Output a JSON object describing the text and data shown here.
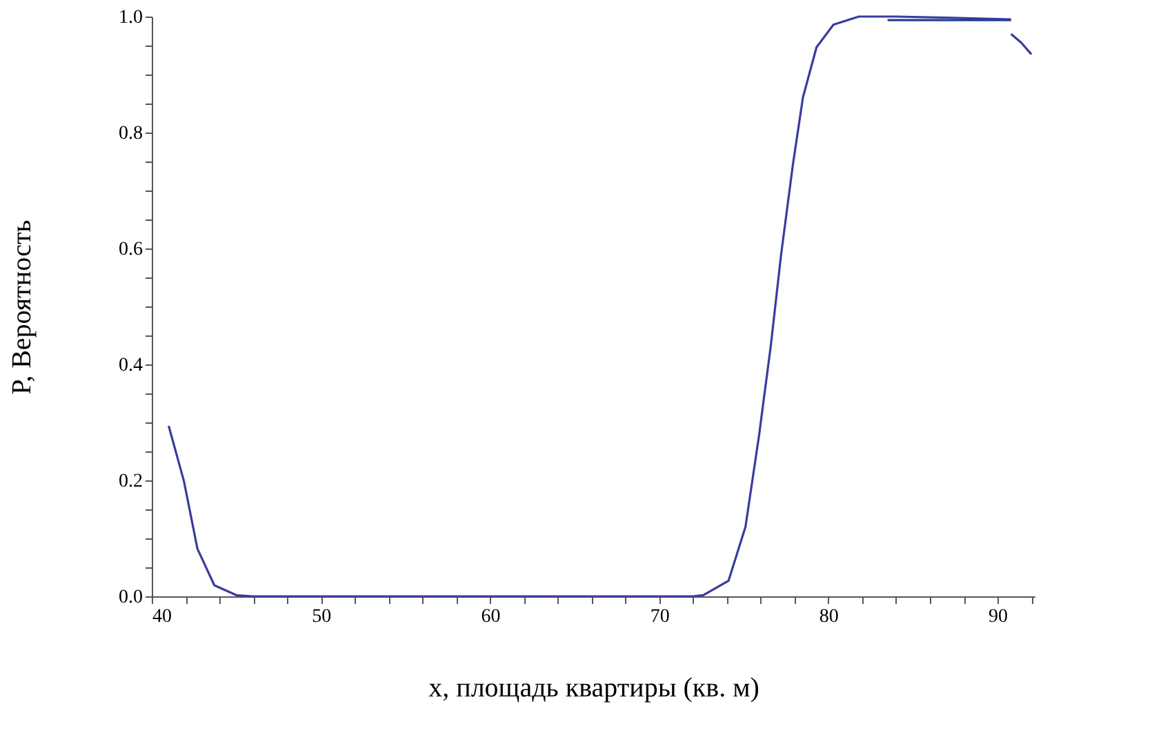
{
  "chart_data": {
    "type": "line",
    "xlabel": "x, площадь квартиры (кв. м)",
    "ylabel": "P, Вероятность",
    "xlim": [
      40,
      92.2
    ],
    "ylim": [
      0,
      1.0
    ],
    "xticks": [
      40,
      {
        "value": 42,
        "label": null
      },
      {
        "value": 44,
        "label": null
      },
      {
        "value": 46,
        "label": null
      },
      {
        "value": 48,
        "label": null
      },
      50,
      {
        "value": 52,
        "label": null
      },
      {
        "value": 54,
        "label": null
      },
      {
        "value": 56,
        "label": null
      },
      {
        "value": 58,
        "label": null
      },
      60,
      {
        "value": 62,
        "label": null
      },
      {
        "value": 64,
        "label": null
      },
      {
        "value": 66,
        "label": null
      },
      {
        "value": 68,
        "label": null
      },
      70,
      {
        "value": 72,
        "label": null
      },
      {
        "value": 74,
        "label": null
      },
      {
        "value": 76,
        "label": null
      },
      {
        "value": 78,
        "label": null
      },
      80,
      {
        "value": 82,
        "label": null
      },
      {
        "value": 84,
        "label": null
      },
      {
        "value": 86,
        "label": null
      },
      {
        "value": 88,
        "label": null
      },
      90,
      {
        "value": 92,
        "label": null
      }
    ],
    "yticks": [
      {
        "value": 0,
        "label": "0.0"
      },
      {
        "value": 0.05,
        "label": null
      },
      {
        "value": 0.1,
        "label": null
      },
      {
        "value": 0.15,
        "label": null
      },
      0.2,
      {
        "value": 0.25,
        "label": null
      },
      {
        "value": 0.3,
        "label": null
      },
      {
        "value": 0.35,
        "label": null
      },
      0.4,
      {
        "value": 0.45,
        "label": null
      },
      {
        "value": 0.5,
        "label": null
      },
      {
        "value": 0.55,
        "label": null
      },
      0.6,
      {
        "value": 0.65,
        "label": null
      },
      {
        "value": 0.7,
        "label": null
      },
      {
        "value": 0.75,
        "label": null
      },
      0.8,
      {
        "value": 0.85,
        "label": null
      },
      {
        "value": 0.9,
        "label": null
      },
      {
        "value": 0.95,
        "label": null
      },
      {
        "value": 1.0,
        "label": "1.0"
      }
    ],
    "grid": false,
    "legend": false,
    "marker": "none",
    "line_style": "solid",
    "series": [
      {
        "color": "#3b3ba0",
        "x": [
          41,
          41.9,
          42.7,
          43.7,
          45,
          46,
          50,
          60,
          70,
          72,
          72.6,
          74.1,
          75.1,
          75.9,
          76.6,
          77.2,
          77.9,
          78.5,
          79.3,
          80.3,
          81.8,
          84,
          87,
          90.8
        ],
        "values": [
          0.294,
          0.199,
          0.082,
          0.019,
          0.002,
          0,
          0,
          0,
          0,
          0,
          0.002,
          0.027,
          0.12,
          0.277,
          0.433,
          0.588,
          0.744,
          0.861,
          0.947,
          0.986,
          1.0,
          1.0,
          0.998,
          0.995
        ]
      },
      {
        "color": "#24408f",
        "x": [
          83.5,
          90.8
        ],
        "values": [
          0.994,
          0.994
        ]
      },
      {
        "color": "#3b3ba0",
        "x": [
          90.8,
          91.4,
          92.0
        ],
        "values": [
          0.97,
          0.955,
          0.935
        ]
      }
    ]
  }
}
